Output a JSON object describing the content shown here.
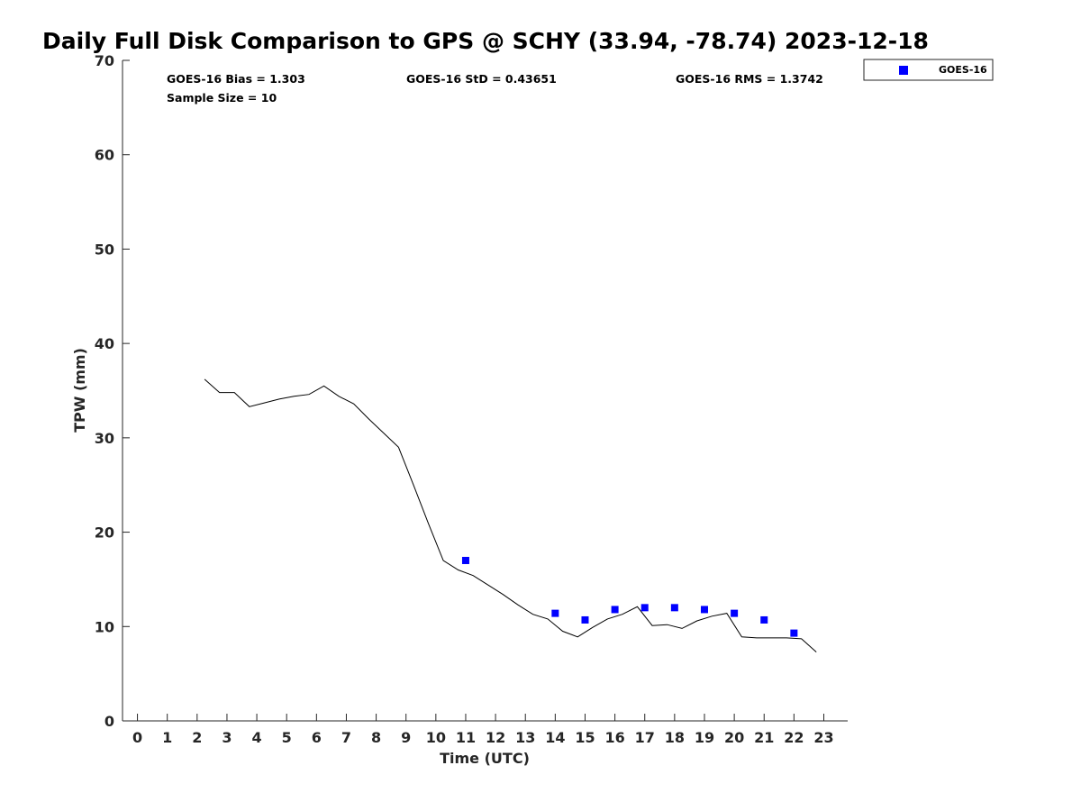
{
  "chart_data": {
    "type": "scatter",
    "title": "Daily Full Disk Comparison to GPS @ SCHY (33.94, -78.74) 2023-12-18",
    "xlabel": "Time (UTC)",
    "ylabel": "TPW (mm)",
    "xlim": [
      -0.5,
      23.8
    ],
    "ylim": [
      0,
      70
    ],
    "x_ticks": [
      0,
      1,
      2,
      3,
      4,
      5,
      6,
      7,
      8,
      9,
      10,
      11,
      12,
      13,
      14,
      15,
      16,
      17,
      18,
      19,
      20,
      21,
      22,
      23
    ],
    "y_ticks": [
      0,
      10,
      20,
      30,
      40,
      50,
      60,
      70
    ],
    "grid": false,
    "legend_position": "top-right-outside",
    "stats": {
      "bias": "GOES-16 Bias = 1.303",
      "std": "GOES-16 StD = 0.43651",
      "rms": "GOES-16 RMS = 1.3742",
      "sample": "Sample Size = 10"
    },
    "series": [
      {
        "name": "GOES-16",
        "kind": "scatter",
        "color": "#0000ff",
        "x": [
          11,
          14,
          15,
          16,
          17,
          18,
          19,
          20,
          21,
          22
        ],
        "y": [
          17.0,
          11.4,
          10.7,
          11.8,
          12.0,
          12.0,
          11.8,
          11.4,
          10.7,
          9.3
        ]
      },
      {
        "kind": "line",
        "color": "#000000",
        "x": [
          2.25,
          2.75,
          3.25,
          3.75,
          4.25,
          4.75,
          5.25,
          5.75,
          6.25,
          6.75,
          7.25,
          7.75,
          8.25,
          8.75,
          9.25,
          9.75,
          10.25,
          10.75,
          11.25,
          11.75,
          12.25,
          12.75,
          13.25,
          13.75,
          14.25,
          14.75,
          15.25,
          15.75,
          16.25,
          16.75,
          17.25,
          17.75,
          18.25,
          18.75,
          19.25,
          19.75,
          20.25,
          20.75,
          21.25,
          21.75,
          22.25,
          22.75
        ],
        "y": [
          36.2,
          34.8,
          34.8,
          33.3,
          33.7,
          34.1,
          34.4,
          34.6,
          35.5,
          34.4,
          33.6,
          32.0,
          30.5,
          29.0,
          25.0,
          20.9,
          17.0,
          16.0,
          15.4,
          14.4,
          13.4,
          12.3,
          11.3,
          10.8,
          9.5,
          8.9,
          9.9,
          10.8,
          11.3,
          12.1,
          10.1,
          10.2,
          9.8,
          10.6,
          11.1,
          11.4,
          8.9,
          8.8,
          8.8,
          8.8,
          8.7,
          7.3
        ]
      }
    ]
  }
}
